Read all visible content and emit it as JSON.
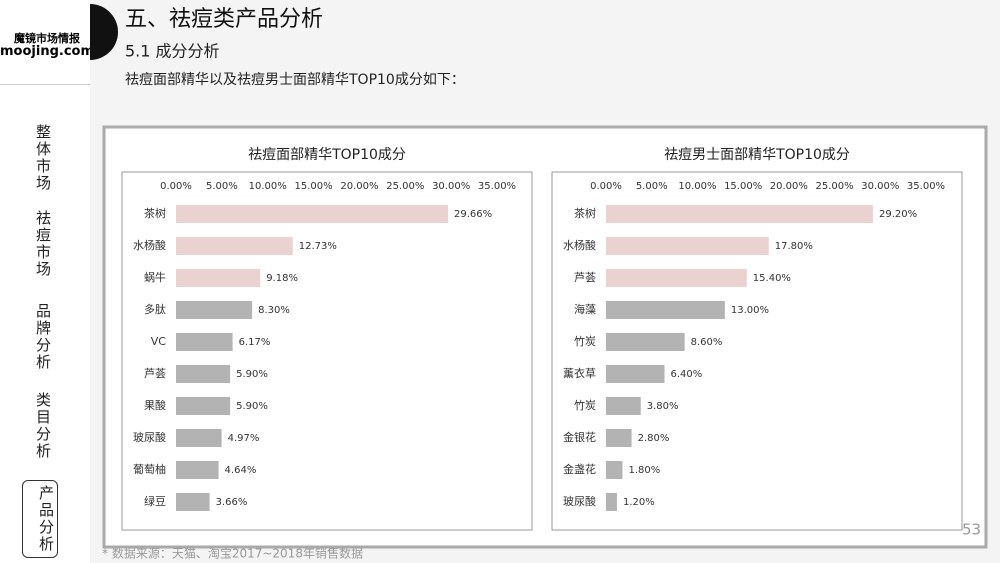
{
  "logo": {
    "name": "魔镜市场情报",
    "site": "moojing.com"
  },
  "sidebar": {
    "items": [
      "整体市场",
      "祛痘市场",
      "品牌分析",
      "类目分析",
      "产品分析"
    ]
  },
  "header": {
    "title": "五、祛痘类产品分析",
    "section": "5.1 成分分析",
    "intro": "祛痘面部精华以及祛痘男士面部精华TOP10成分如下："
  },
  "footer": {
    "source": "* 数据来源：天猫、淘宝2017~2018年销售数据",
    "page": "53"
  },
  "chart_data": [
    {
      "type": "bar",
      "orientation": "horizontal",
      "title": "祛痘面部精华TOP10成分",
      "categories": [
        "茶树",
        "水杨酸",
        "蜗牛",
        "多肽",
        "VC",
        "芦荟",
        "果酸",
        "玻尿酸",
        "葡萄柚",
        "绿豆"
      ],
      "values": [
        29.66,
        12.73,
        9.18,
        8.3,
        6.17,
        5.9,
        5.9,
        4.97,
        4.64,
        3.66
      ],
      "value_labels": [
        "29.66%",
        "12.73%",
        "9.18%",
        "8.30%",
        "6.17%",
        "5.90%",
        "5.90%",
        "4.97%",
        "4.64%",
        "3.66%"
      ],
      "colors": [
        "#e9d2cf",
        "#e9d2cf",
        "#e9d2cf",
        "#b3b3b3",
        "#b3b3b3",
        "#b3b3b3",
        "#b3b3b3",
        "#b3b3b3",
        "#b3b3b3",
        "#b3b3b3"
      ],
      "xlim": [
        0,
        35
      ],
      "xticks": [
        {
          "value": 0,
          "label": "0.00%"
        },
        {
          "value": 5,
          "label": "5.00%"
        },
        {
          "value": 10,
          "label": "10.00%"
        },
        {
          "value": 15,
          "label": "15.00%"
        },
        {
          "value": 20,
          "label": "20.00%"
        },
        {
          "value": 25,
          "label": "25.00%"
        },
        {
          "value": 30,
          "label": "30.00%"
        },
        {
          "value": 35,
          "label": "35.00%"
        }
      ],
      "grid": false
    },
    {
      "type": "bar",
      "orientation": "horizontal",
      "title": "祛痘男士面部精华TOP10成分",
      "categories": [
        "茶树",
        "水杨酸",
        "芦荟",
        "海藻",
        "竹炭",
        "薰衣草",
        "竹炭",
        "金银花",
        "金盏花",
        "玻尿酸"
      ],
      "values": [
        29.2,
        17.8,
        15.4,
        13.0,
        8.6,
        6.4,
        3.8,
        2.8,
        1.8,
        1.2
      ],
      "value_labels": [
        "29.20%",
        "17.80%",
        "15.40%",
        "13.00%",
        "8.60%",
        "6.40%",
        "3.80%",
        "2.80%",
        "1.80%",
        "1.20%"
      ],
      "colors": [
        "#e9d2cf",
        "#e9d2cf",
        "#e9d2cf",
        "#b3b3b3",
        "#b3b3b3",
        "#b3b3b3",
        "#b3b3b3",
        "#b3b3b3",
        "#b3b3b3",
        "#b3b3b3"
      ],
      "xlim": [
        0,
        35
      ],
      "xticks": [
        {
          "value": 0,
          "label": "0.00%"
        },
        {
          "value": 5,
          "label": "5.00%"
        },
        {
          "value": 10,
          "label": "10.00%"
        },
        {
          "value": 15,
          "label": "15.00%"
        },
        {
          "value": 20,
          "label": "20.00%"
        },
        {
          "value": 25,
          "label": "25.00%"
        },
        {
          "value": 30,
          "label": "30.00%"
        },
        {
          "value": 35,
          "label": "35.00%"
        }
      ],
      "grid": false
    }
  ]
}
